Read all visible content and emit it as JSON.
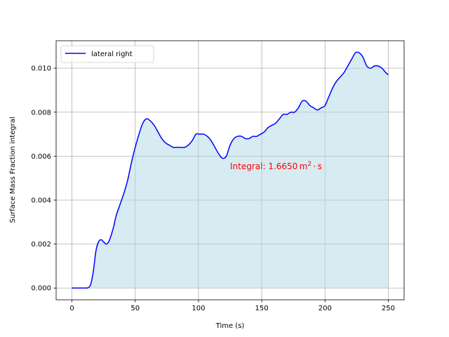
{
  "chart_data": {
    "type": "area",
    "title": "",
    "xlabel": "Time (s)",
    "ylabel": "Surface Mass Fraction integral",
    "xlim": [
      -12.5,
      262.5
    ],
    "ylim": [
      -0.000535,
      0.01125
    ],
    "xticks": [
      0,
      50,
      100,
      150,
      200,
      250
    ],
    "xtick_labels": [
      "0",
      "50",
      "100",
      "150",
      "200",
      "250"
    ],
    "yticks": [
      0.0,
      0.002,
      0.004,
      0.006,
      0.008,
      0.01
    ],
    "ytick_labels": [
      "0.000",
      "0.002",
      "0.004",
      "0.006",
      "0.008",
      "0.010"
    ],
    "grid": true,
    "legend_position": "upper-left",
    "series": [
      {
        "name": "lateral right",
        "color": "#0000ff",
        "fill_color": "#add8e6",
        "x": [
          0,
          5,
          10,
          13,
          15,
          17,
          19,
          21,
          23,
          25,
          27,
          29,
          31,
          33,
          35,
          38,
          41,
          44,
          47,
          50,
          53,
          56,
          59,
          62,
          65,
          68,
          71,
          74,
          77,
          80,
          83,
          86,
          89,
          92,
          95,
          98,
          101,
          104,
          107,
          110,
          113,
          116,
          119,
          122,
          125,
          128,
          131,
          134,
          137,
          140,
          143,
          146,
          149,
          152,
          155,
          158,
          161,
          164,
          167,
          170,
          173,
          176,
          179,
          182,
          185,
          188,
          191,
          194,
          197,
          200,
          203,
          206,
          209,
          212,
          215,
          218,
          221,
          224,
          227,
          230,
          233,
          236,
          239,
          242,
          245,
          248,
          250
        ],
        "y": [
          0.0,
          0.0,
          0.0,
          2e-05,
          0.0002,
          0.0008,
          0.0017,
          0.0021,
          0.0022,
          0.0021,
          0.002,
          0.0021,
          0.0024,
          0.0028,
          0.0033,
          0.0038,
          0.0043,
          0.0049,
          0.0057,
          0.0064,
          0.007,
          0.0075,
          0.0077,
          0.0076,
          0.0074,
          0.0071,
          0.0068,
          0.0066,
          0.0065,
          0.0064,
          0.0064,
          0.0064,
          0.0064,
          0.0065,
          0.0067,
          0.007,
          0.007,
          0.007,
          0.0069,
          0.0067,
          0.0064,
          0.0061,
          0.0059,
          0.006,
          0.0065,
          0.0068,
          0.0069,
          0.0069,
          0.0068,
          0.0068,
          0.0069,
          0.0069,
          0.007,
          0.0071,
          0.0073,
          0.0074,
          0.0075,
          0.0077,
          0.0079,
          0.0079,
          0.008,
          0.008,
          0.0082,
          0.0085,
          0.0085,
          0.0083,
          0.0082,
          0.0081,
          0.0082,
          0.0083,
          0.0087,
          0.0091,
          0.0094,
          0.0096,
          0.0098,
          0.0101,
          0.0104,
          0.0107,
          0.0107,
          0.0105,
          0.0101,
          0.01,
          0.0101,
          0.0101,
          0.01,
          0.0098,
          0.0097
        ]
      }
    ],
    "annotations": [
      {
        "text": "Integral: 1.6650 m",
        "superscript": "2",
        "suffix": " · s",
        "x": 125,
        "y": 0.0054,
        "color": "#ff0000"
      }
    ]
  }
}
